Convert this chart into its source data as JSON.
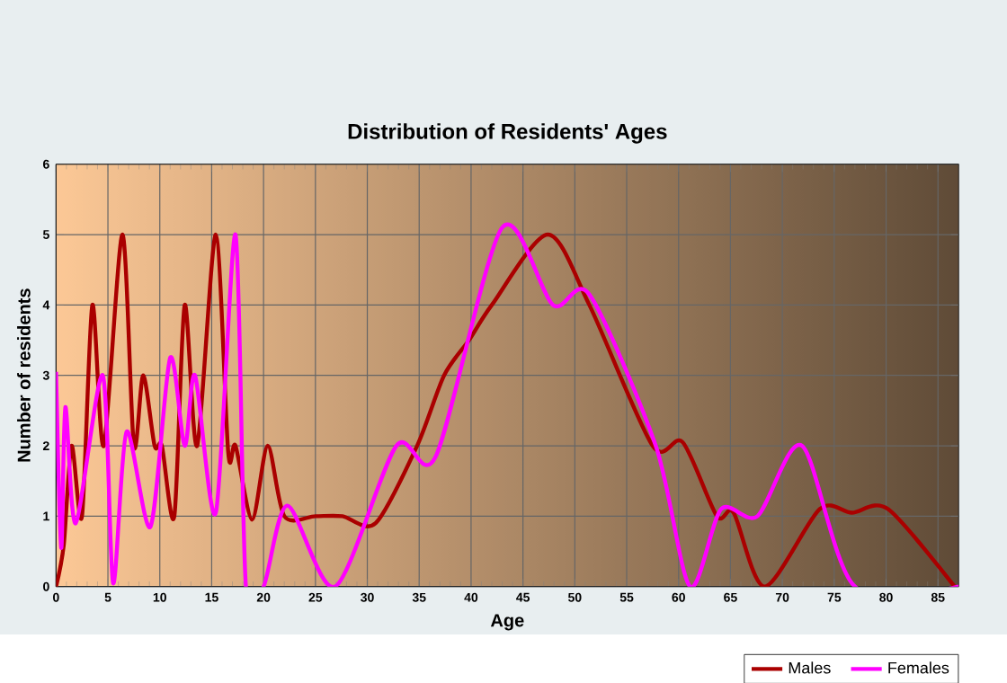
{
  "chart_data": {
    "type": "line",
    "title": "Distribution of Residents' Ages",
    "xlabel": "Age",
    "ylabel": "Number of residents",
    "xlim": [
      0,
      87
    ],
    "xticks": [
      0,
      5,
      10,
      15,
      20,
      25,
      30,
      35,
      40,
      45,
      50,
      55,
      60,
      65,
      70,
      75,
      80,
      85
    ],
    "ylim": [
      0,
      6
    ],
    "yticks": [
      0,
      1,
      2,
      3,
      4,
      5,
      6
    ],
    "grid": true,
    "legend": "bottom right",
    "marker": "none",
    "line_style": "solid",
    "series": [
      {
        "name": "Males",
        "color": "#aa0000",
        "x": [
          0,
          0.75,
          1.5,
          2.5,
          3.5,
          4.6,
          6.4,
          7.5,
          8.4,
          9.5,
          10.2,
          11.4,
          12.4,
          13.6,
          15.4,
          16.6,
          17.3,
          18.9,
          20.4,
          22,
          25,
          27.6,
          30.8,
          34.8,
          37.4,
          39.8,
          42,
          47.4,
          51.4,
          57.5,
          60.4,
          63.7,
          65.3,
          68.3,
          73.6,
          76.7,
          80.2,
          86.6
        ],
        "values": [
          0,
          0.6,
          2,
          1,
          4,
          2,
          5,
          2,
          3,
          2,
          2,
          1,
          4,
          2,
          5,
          1.9,
          2,
          0.95,
          2,
          1,
          1,
          1,
          0.9,
          2,
          3,
          3.5,
          4,
          5,
          4,
          2,
          2.05,
          1,
          1.05,
          0,
          1.1,
          1.05,
          1.1,
          0
        ]
      },
      {
        "name": "Females",
        "color": "#ff00ff",
        "x": [
          0,
          0.5,
          0.9,
          1.9,
          4.5,
          5.5,
          6.8,
          9.1,
          11,
          12.4,
          13.4,
          15.4,
          17.3,
          18.3,
          20,
          22.3,
          26.9,
          32.8,
          36.6,
          43,
          47.9,
          51.4,
          57.8,
          61.1,
          64.1,
          67.6,
          71.9,
          77,
          87
        ],
        "values": [
          3.05,
          0.55,
          2.55,
          0.9,
          3,
          0.05,
          2.2,
          0.85,
          3.25,
          2,
          3,
          1.05,
          5,
          0,
          0,
          1.15,
          0,
          2,
          1.85,
          5.1,
          4,
          4.15,
          2,
          0,
          1.1,
          1,
          2,
          0,
          0
        ]
      }
    ]
  }
}
